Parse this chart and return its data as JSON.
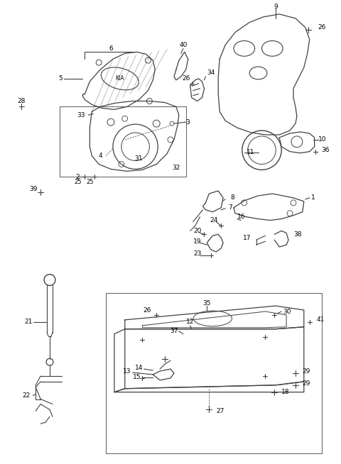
{
  "bg_color": "#ffffff",
  "line_color": "#404040",
  "text_color": "#000000",
  "fig_width": 4.8,
  "fig_height": 6.54,
  "dpi": 100
}
